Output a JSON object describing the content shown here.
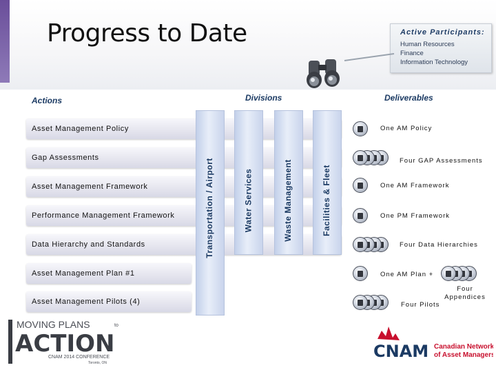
{
  "slide": {
    "title": "Progress to Date",
    "active_participants": {
      "heading": "Active Participants:",
      "items": [
        "Human Resources",
        "Finance",
        "Information Technology"
      ]
    },
    "headers": {
      "actions": "Actions",
      "divisions": "Divisions",
      "deliverables": "Deliverables"
    },
    "actions": [
      "Asset Management Policy",
      "Gap Assessments",
      "Asset Management Framework",
      "Performance Management Framework",
      "Data Hierarchy and Standards",
      "Asset Management Plan #1",
      "Asset Management Pilots (4)"
    ],
    "divisions": [
      "Transportation / Airport",
      "Water Services",
      "Waste Management",
      "Facilities & Fleet"
    ],
    "deliverables": [
      "One AM Policy",
      "Four GAP Assessments",
      "One AM Framework",
      "One PM Framework",
      "Four Data Hierarchies",
      "One AM Plan +",
      "Four Appendices",
      "Four Pilots"
    ]
  },
  "logos": {
    "left": {
      "line1": "MOVING PLANS",
      "to": "to",
      "line2": "ACTION",
      "line3": "CNAM 2014 CONFERENCE",
      "line4": "Toronto, ON"
    },
    "right": {
      "mark": "CNAM",
      "line1": "Canadian Network",
      "line2": "of Asset Managers"
    }
  },
  "colors": {
    "header_text": "#1b3a63",
    "accent_purple": "#6a4e9a",
    "cnam_red": "#c8102e",
    "cnam_navy": "#1b3a63"
  },
  "icons": {
    "binoculars": "binoculars-icon",
    "deliverable": "document-disk-icon"
  }
}
